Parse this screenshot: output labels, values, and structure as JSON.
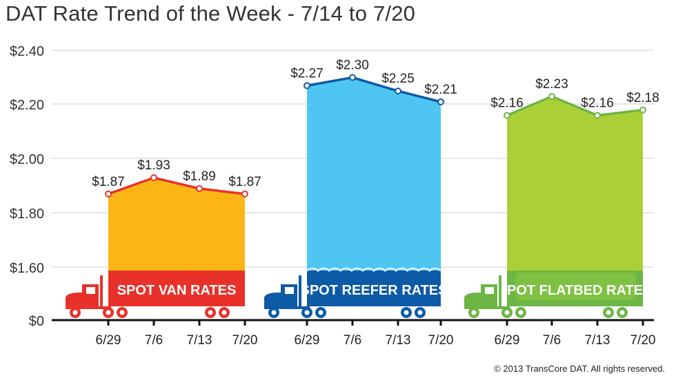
{
  "chart_data": {
    "type": "area",
    "title": "DAT Rate Trend of the Week - 7/14 to 7/20",
    "xlabel": "",
    "ylabel": "",
    "yticks": [
      "$0",
      "$1.60",
      "$1.80",
      "$2.00",
      "$2.20",
      "$2.40"
    ],
    "ylim": [
      1.6,
      2.4
    ],
    "axis_break": "y axis jumps from $0 to $1.60",
    "grid": true,
    "groups": [
      {
        "name": "SPOT VAN RATES",
        "categories": [
          "6/29",
          "7/6",
          "7/13",
          "7/20"
        ],
        "values": [
          1.87,
          1.93,
          1.89,
          1.87
        ],
        "labels": [
          "$1.87",
          "$1.93",
          "$1.89",
          "$1.87"
        ],
        "fill": "#fbb615",
        "line": "#e8312a",
        "truck": "#e8312a"
      },
      {
        "name": "SPOT REEFER RATES",
        "categories": [
          "6/29",
          "7/6",
          "7/13",
          "7/20"
        ],
        "values": [
          2.27,
          2.3,
          2.25,
          2.21
        ],
        "labels": [
          "$2.27",
          "$2.30",
          "$2.25",
          "$2.21"
        ],
        "fill": "#4fc5f1",
        "line": "#0d5aa7",
        "truck": "#0d5aa7"
      },
      {
        "name": "SPOT FLATBED RATES",
        "categories": [
          "6/29",
          "7/6",
          "7/13",
          "7/20"
        ],
        "values": [
          2.16,
          2.23,
          2.16,
          2.18
        ],
        "labels": [
          "$2.16",
          "$2.23",
          "$2.16",
          "$2.18"
        ],
        "fill": "#abd037",
        "line": "#6db544",
        "truck": "#6db544"
      }
    ]
  },
  "footer": {
    "copyright": "© 2013 TransCore DAT. All rights reserved."
  }
}
